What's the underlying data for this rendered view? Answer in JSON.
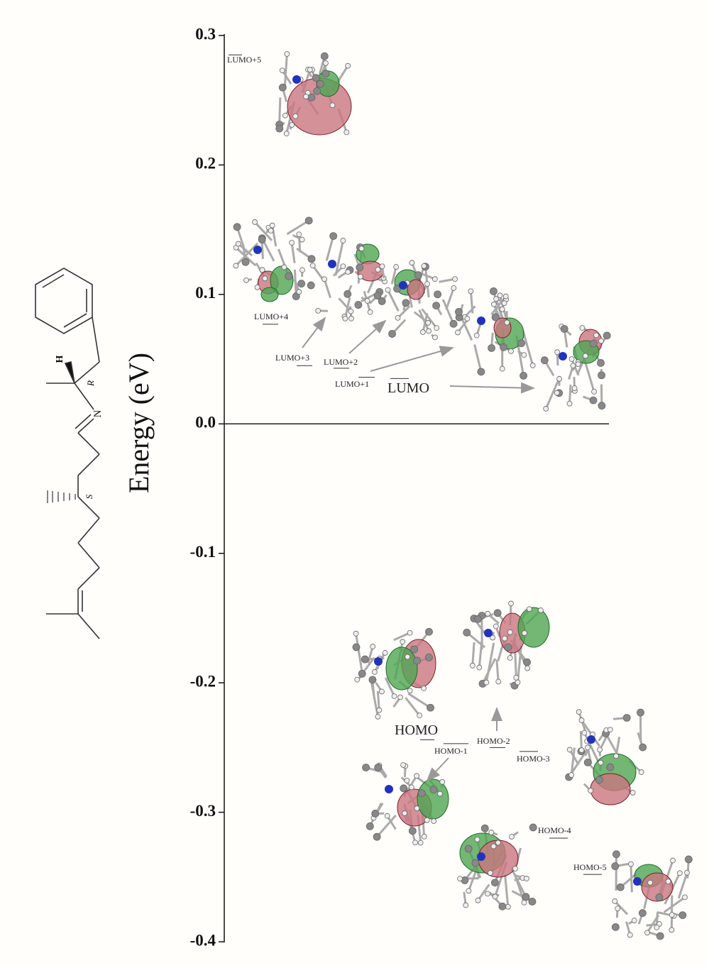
{
  "chart_data": {
    "type": "energy_levels",
    "y_label": "Energy (eV)",
    "ylim": [
      -0.4,
      0.3
    ],
    "yticks": [
      0.3,
      0.2,
      0.1,
      {
        "value": 0,
        "label": "0.0"
      },
      -0.1,
      -0.2,
      -0.3,
      -0.4
    ],
    "categories": [
      "LUMO+5",
      "LUMO+4",
      "LUMO+3",
      "LUMO+2",
      "LUMO+1",
      "LUMO",
      "HOMO",
      "HOMO-1",
      "HOMO-2",
      "HOMO-3",
      "HOMO-4",
      "HOMO-5"
    ],
    "values": [
      0.285,
      0.077,
      0.045,
      0.043,
      0.036,
      0.035,
      -0.244,
      -0.247,
      -0.25,
      -0.253,
      -0.32,
      -0.348
    ]
  },
  "structure": {
    "labels": [
      "H",
      "R",
      "N",
      "S"
    ]
  }
}
